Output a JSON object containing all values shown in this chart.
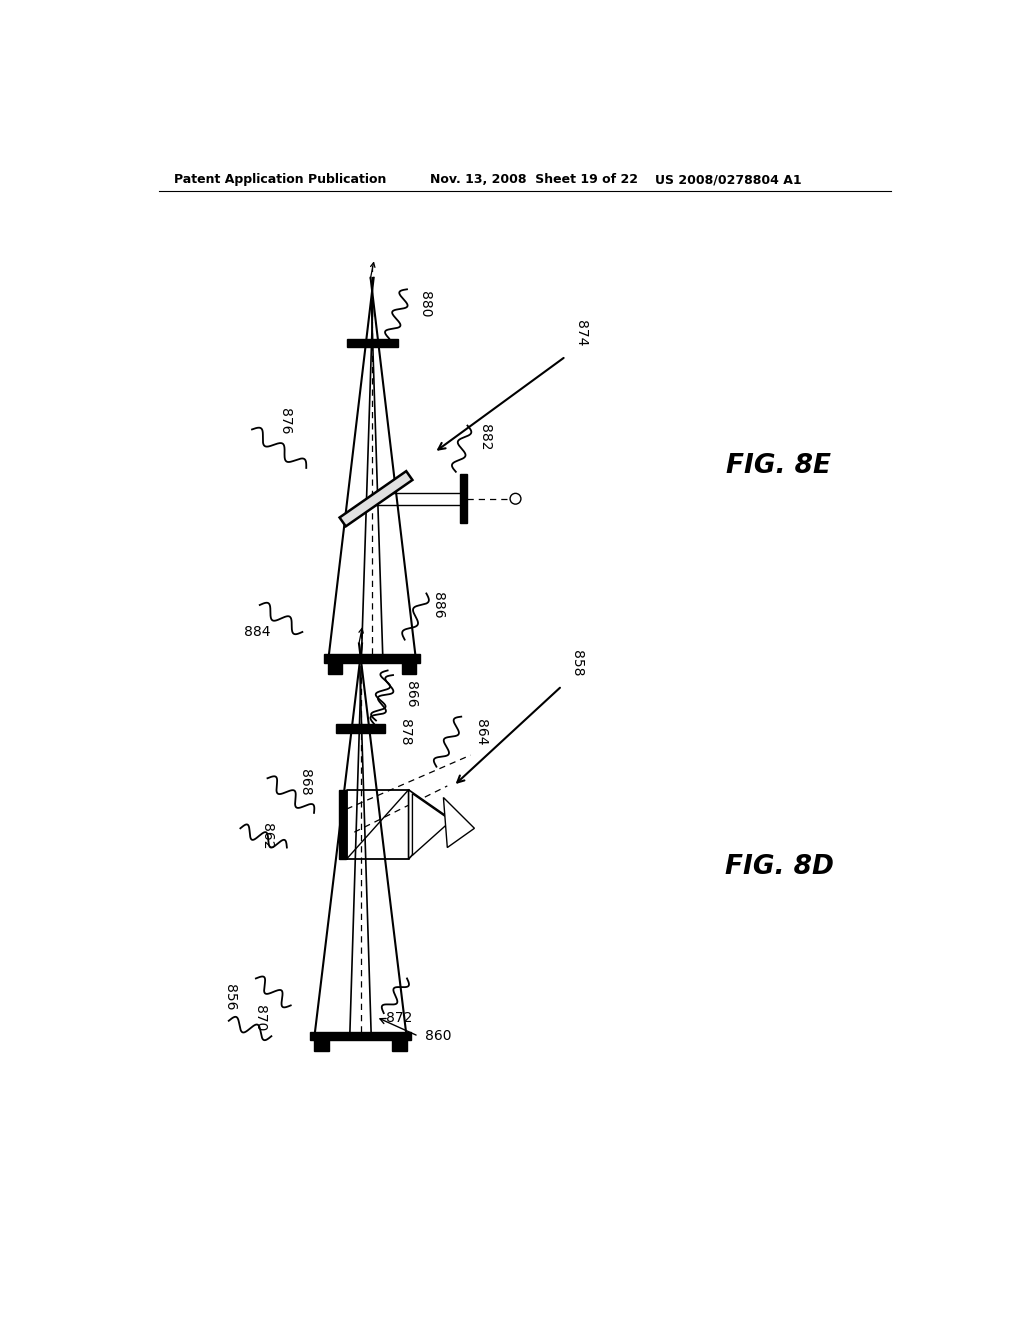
{
  "bg_color": "#ffffff",
  "header_left": "Patent Application Publication",
  "header_mid": "Nov. 13, 2008  Sheet 19 of 22",
  "header_right": "US 2008/0278804 A1",
  "fig_8e_label": "FIG. 8E",
  "fig_8d_label": "FIG. 8D"
}
